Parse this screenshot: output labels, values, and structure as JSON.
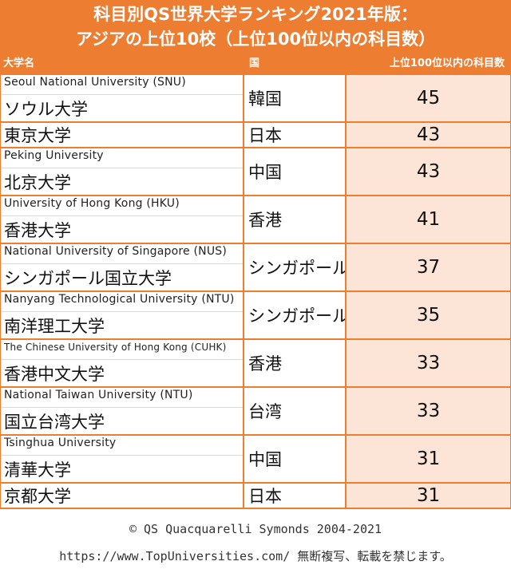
{
  "chart_data": {
    "type": "table",
    "title": [
      "科目別QS世界大学ランキング2021年版：",
      "アジアの上位10校（上位100位以内の科目数）"
    ],
    "columns": [
      "大学名",
      "国",
      "上位100位以内の科目数"
    ],
    "rows": [
      {
        "en": "Seoul National University (SNU)",
        "jp": "ソウル大学",
        "country": "韓国",
        "value": 45
      },
      {
        "en": "",
        "jp": "東京大学",
        "country": "日本",
        "value": 43
      },
      {
        "en": "Peking University",
        "jp": "北京大学",
        "country": "中国",
        "value": 43
      },
      {
        "en": "University of Hong Kong (HKU)",
        "jp": "香港大学",
        "country": "香港",
        "value": 41
      },
      {
        "en": "National University of Singapore (NUS)",
        "jp": "シンガポール国立大学",
        "country": "シンガポール",
        "value": 37
      },
      {
        "en": "Nanyang Technological University (NTU)",
        "jp": "南洋理工大学",
        "country": "シンガポール",
        "value": 35
      },
      {
        "en": "The Chinese University of Hong Kong (CUHK)",
        "jp": "香港中文大学",
        "country": "香港",
        "value": 33
      },
      {
        "en": "National Taiwan University (NTU)",
        "jp": "国立台湾大学",
        "country": "台湾",
        "value": 33
      },
      {
        "en": "Tsinghua University",
        "jp": "清華大学",
        "country": "中国",
        "value": 31
      },
      {
        "en": "",
        "jp": "京都大学",
        "country": "日本",
        "value": 31
      }
    ]
  },
  "footer": {
    "copyright": "© QS Quacquarelli Symonds 2004-2021",
    "notice": "https://www.TopUniversities.com/ 無断複写、転載を禁じます。"
  },
  "colors": {
    "accent": "#ed7d31",
    "value_fill": "#fce4d6"
  }
}
